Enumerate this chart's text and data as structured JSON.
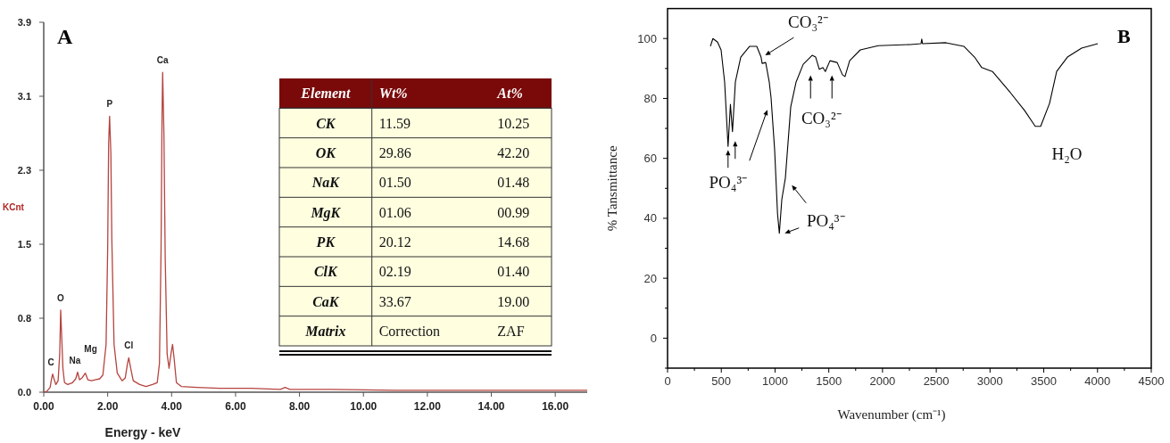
{
  "chart_data": [
    {
      "type": "line",
      "title": "A",
      "xlabel": "Energy - keV",
      "ylabel": "KCnt",
      "xlim": [
        0,
        17
      ],
      "ylim": [
        0,
        3.875
      ],
      "xticks": [
        {
          "value": 0,
          "label": "0.00"
        },
        {
          "value": 2,
          "label": "2.00"
        },
        {
          "value": 4,
          "label": "4.00"
        },
        {
          "value": 6,
          "label": "6.00"
        },
        {
          "value": 8,
          "label": "8.00"
        },
        {
          "value": 10,
          "label": "10.00"
        },
        {
          "value": 12,
          "label": "12.00"
        },
        {
          "value": 14,
          "label": "14.00"
        },
        {
          "value": 16,
          "label": "16.00"
        }
      ],
      "yticks": [
        {
          "value": 0,
          "label": "0.0"
        },
        {
          "value": 0.775,
          "label": "0.8"
        },
        {
          "value": 1.55,
          "label": "1.5"
        },
        {
          "value": 2.325,
          "label": "2.3"
        },
        {
          "value": 3.1,
          "label": "3.1"
        },
        {
          "value": 3.875,
          "label": "3.9"
        }
      ],
      "series": [
        {
          "color": "#b5443f",
          "x": [
            0,
            0.1,
            0.2,
            0.25,
            0.28,
            0.32,
            0.38,
            0.45,
            0.5,
            0.53,
            0.56,
            0.6,
            0.65,
            0.75,
            0.9,
            1.0,
            1.06,
            1.12,
            1.2,
            1.3,
            1.38,
            1.5,
            1.6,
            1.75,
            1.85,
            1.95,
            2.0,
            2.03,
            2.06,
            2.1,
            2.13,
            2.2,
            2.3,
            2.45,
            2.55,
            2.62,
            2.66,
            2.72,
            2.8,
            3.0,
            3.2,
            3.4,
            3.55,
            3.62,
            3.67,
            3.7,
            3.72,
            3.76,
            3.8,
            3.86,
            3.92,
            3.98,
            4.03,
            4.08,
            4.15,
            4.3,
            4.8,
            5.5,
            6.5,
            7.4,
            7.55,
            7.7,
            9,
            11,
            13,
            15,
            17
          ],
          "values": [
            0,
            0.01,
            0.05,
            0.15,
            0.19,
            0.14,
            0.08,
            0.12,
            0.4,
            0.86,
            0.6,
            0.25,
            0.1,
            0.08,
            0.1,
            0.14,
            0.21,
            0.13,
            0.15,
            0.2,
            0.13,
            0.12,
            0.13,
            0.14,
            0.18,
            0.5,
            1.5,
            2.6,
            2.89,
            2.5,
            1.6,
            0.5,
            0.2,
            0.12,
            0.15,
            0.3,
            0.36,
            0.25,
            0.12,
            0.08,
            0.06,
            0.08,
            0.1,
            0.3,
            1.5,
            2.9,
            3.35,
            2.7,
            1.4,
            0.4,
            0.25,
            0.4,
            0.5,
            0.35,
            0.1,
            0.06,
            0.05,
            0.04,
            0.04,
            0.03,
            0.05,
            0.03,
            0.03,
            0.02,
            0.02,
            0.02,
            0.02
          ]
        }
      ],
      "annotations": [
        {
          "text": "C",
          "x": 0.28,
          "y": 0.19
        },
        {
          "text": "O",
          "x": 0.53,
          "y": 0.86
        },
        {
          "text": "Na",
          "x": 1.06,
          "y": 0.21
        },
        {
          "text": "Mg",
          "x": 1.3,
          "y": 0.2
        },
        {
          "text": "P",
          "x": 2.06,
          "y": 2.89
        },
        {
          "text": "Cl",
          "x": 2.66,
          "y": 0.36
        },
        {
          "text": "Ca",
          "x": 3.72,
          "y": 3.35
        }
      ]
    },
    {
      "type": "other",
      "categories": [
        "Element",
        "Wt%",
        "At%"
      ],
      "y_categories": [
        "CK",
        "OK",
        "NaK",
        "MgK",
        "PK",
        "ClK",
        "CaK",
        "Matrix"
      ],
      "cell_labels": [
        [
          "11.59",
          "10.25"
        ],
        [
          "29.86",
          "42.20"
        ],
        [
          "01.50",
          "01.48"
        ],
        [
          "01.06",
          "00.99"
        ],
        [
          "20.12",
          "14.68"
        ],
        [
          "02.19",
          "01.40"
        ],
        [
          "33.67",
          "19.00"
        ],
        [
          "Correction",
          "ZAF"
        ]
      ]
    },
    {
      "type": "line",
      "title": "B",
      "xlabel": "Wavenumber (cm⁻¹)",
      "ylabel": "% Tansmittance",
      "xlim": [
        0,
        4500
      ],
      "ylim": [
        -10,
        110
      ],
      "xticks": [
        0,
        {
          "value": 250,
          "label": null
        },
        500,
        {
          "value": 750,
          "label": null
        },
        1000,
        {
          "value": 1250,
          "label": null
        },
        1500,
        {
          "value": 1750,
          "label": null
        },
        2000,
        {
          "value": 2250,
          "label": null
        },
        2500,
        {
          "value": 2750,
          "label": null
        },
        3000,
        {
          "value": 3250,
          "label": null
        },
        3500,
        {
          "value": 3750,
          "label": null
        },
        4000,
        {
          "value": 4250,
          "label": null
        },
        4500
      ],
      "yticks": [
        {
          "value": -10,
          "label": null
        },
        0,
        {
          "value": 10,
          "label": null
        },
        20,
        {
          "value": 30,
          "label": null
        },
        40,
        {
          "value": 50,
          "label": null
        },
        60,
        {
          "value": 70,
          "label": null
        },
        80,
        {
          "value": 90,
          "label": null
        },
        100
      ],
      "series": [
        {
          "color": "#000000",
          "x": [
            399,
            422,
            465,
            498,
            531,
            563,
            585,
            604,
            631,
            681,
            764,
            830,
            870,
            880,
            913,
            946,
            963,
            996,
            1023,
            1040,
            1063,
            1096,
            1146,
            1196,
            1262,
            1345,
            1378,
            1412,
            1445,
            1468,
            1511,
            1578,
            1627,
            1651,
            1694,
            1793,
            1960,
            2258,
            2358,
            2365,
            2372,
            2590,
            2756,
            2856,
            2923,
            3022,
            3188,
            3321,
            3421,
            3471,
            3554,
            3620,
            3720,
            3852,
            4002
          ],
          "values": [
            97.4,
            100,
            98.8,
            96.2,
            85.5,
            64,
            78,
            68.9,
            85.5,
            93.8,
            97.4,
            97.4,
            93.8,
            91.7,
            92,
            85.5,
            80.2,
            63,
            41.6,
            35,
            46.3,
            53.4,
            77.2,
            85.5,
            91.4,
            94.4,
            93.8,
            89.7,
            90.3,
            89,
            92.6,
            92,
            87.9,
            87.3,
            92.6,
            96.2,
            97.6,
            98,
            98.3,
            99.8,
            98.3,
            98.6,
            97.4,
            93.8,
            90.3,
            89,
            82,
            76,
            70.7,
            70.7,
            78.4,
            89,
            93.8,
            96.8,
            98.3
          ]
        }
      ],
      "annotations": [
        {
          "text": "CO₃²⁻",
          "x": 875,
          "y": 92
        },
        {
          "text": "CO₃²⁻",
          "x": 1430,
          "y": 89.5
        },
        {
          "text": "PO₄³⁻",
          "x": 563,
          "y": 64
        },
        {
          "text": "PO₄³⁻",
          "x": 1040,
          "y": 35
        },
        {
          "text": "H₂O",
          "x": 3450,
          "y": 70
        }
      ]
    }
  ]
}
